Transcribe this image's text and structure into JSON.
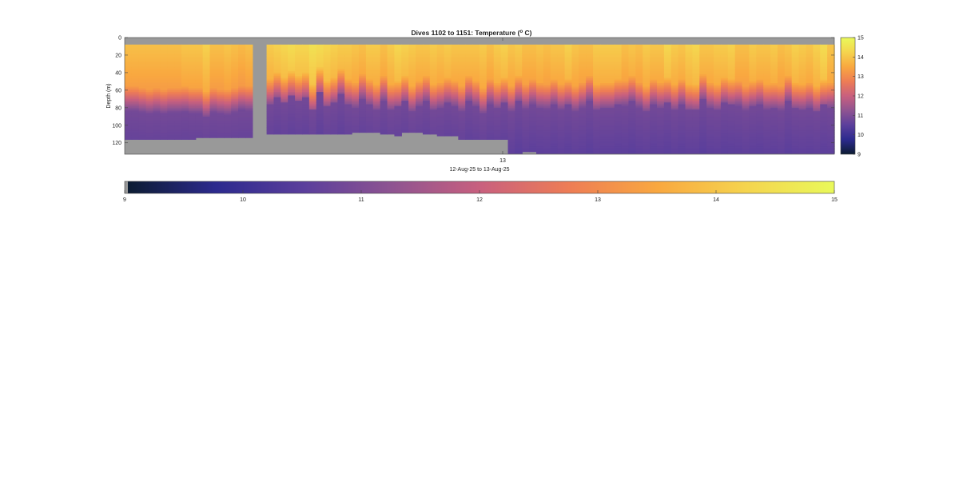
{
  "chart_data": {
    "type": "heatmap",
    "title": "Dives 1102 to 1151: Temperature (",
    "title_superscript": "o",
    "title_suffix": " C)",
    "ylabel": "Depth (m)",
    "xlabel": "12-Aug-25 to 13-Aug-25",
    "x_ticks": [
      "13"
    ],
    "y_ticks": [
      0,
      20,
      40,
      60,
      80,
      100,
      120
    ],
    "ylim": [
      0,
      133
    ],
    "y_reversed": true,
    "clim": [
      9,
      15
    ],
    "colorbar_ticks": [
      9,
      10,
      11,
      12,
      13,
      14,
      15
    ],
    "colormap": [
      "#0c1c32",
      "#2c2a8e",
      "#5b3f9c",
      "#8f5491",
      "#c9607e",
      "#ee7d55",
      "#f9a840",
      "#f5d44e",
      "#e9f95a"
    ],
    "nodata_color": "#999999",
    "n_columns": 100,
    "missing_columns": [
      18,
      19
    ],
    "column_profiles": {
      "surface_temp": [
        13.9,
        13.9,
        13.9,
        13.9,
        13.9,
        13.9,
        13.9,
        13.9,
        14.0,
        14.0,
        14.0,
        14.2,
        13.9,
        13.9,
        14.0,
        13.9,
        13.8,
        13.9,
        null,
        null,
        14.1,
        14.2,
        14.3,
        14.4,
        14.3,
        14.3,
        14.5,
        14.4,
        14.3,
        14.2,
        14.1,
        14.1,
        14.0,
        13.9,
        14.1,
        14.1,
        13.9,
        14.1,
        14.3,
        14.2,
        14.1,
        14.0,
        14.0,
        14.1,
        14.0,
        14.1,
        14.0,
        14.0,
        14.0,
        14.0,
        14.1,
        13.9,
        14.1,
        14.2,
        14.0,
        14.1,
        13.9,
        13.9,
        14.0,
        13.9,
        14.0,
        14.0,
        14.2,
        14.0,
        13.9,
        13.9,
        14.1,
        14.1,
        14.1,
        14.1,
        13.9,
        14.0,
        13.9,
        14.1,
        14.0,
        14.0,
        14.3,
        14.1,
        14.0,
        14.2,
        14.3,
        14.0,
        14.0,
        14.1,
        14.1,
        14.2,
        13.9,
        13.9,
        14.1,
        14.0,
        14.0,
        14.1,
        13.9,
        14.0,
        14.2,
        14.1,
        14.0,
        14.2,
        14.4,
        14.0
      ],
      "mixed_layer_depth_m": [
        60,
        60,
        62,
        64,
        62,
        64,
        62,
        62,
        60,
        62,
        62,
        66,
        62,
        64,
        64,
        62,
        60,
        60,
        null,
        null,
        52,
        44,
        50,
        42,
        48,
        44,
        58,
        38,
        54,
        50,
        40,
        52,
        56,
        46,
        52,
        58,
        48,
        58,
        54,
        48,
        60,
        54,
        48,
        58,
        56,
        50,
        54,
        60,
        48,
        54,
        62,
        52,
        56,
        50,
        60,
        48,
        58,
        52,
        56,
        58,
        52,
        58,
        52,
        60,
        56,
        48,
        58,
        56,
        56,
        52,
        54,
        48,
        56,
        60,
        52,
        56,
        50,
        58,
        52,
        58,
        58,
        46,
        56,
        58,
        50,
        52,
        54,
        60,
        54,
        52,
        58,
        56,
        60,
        48,
        56,
        58,
        56,
        60,
        52,
        56
      ],
      "bottom_depth_m": [
        116,
        116,
        116,
        116,
        116,
        116,
        116,
        116,
        116,
        115,
        114,
        113,
        113,
        113,
        113,
        113,
        113,
        113,
        120,
        120,
        109,
        109,
        109,
        109,
        109,
        109,
        109,
        109,
        109,
        109,
        109,
        109,
        108,
        108,
        108,
        108,
        109,
        110,
        111,
        108,
        108,
        108,
        109,
        110,
        111,
        112,
        112,
        116,
        116,
        116,
        116,
        116,
        116,
        116,
        132,
        132,
        130,
        130,
        131,
        131,
        131,
        131,
        131,
        131,
        131,
        131,
        131,
        131,
        131,
        131,
        131,
        131,
        131,
        131,
        131,
        131,
        131,
        131,
        131,
        131,
        132,
        132,
        132,
        132,
        132,
        132,
        131,
        131,
        131,
        132,
        132,
        132,
        132,
        132,
        132,
        132,
        132,
        132,
        131,
        131
      ]
    }
  }
}
